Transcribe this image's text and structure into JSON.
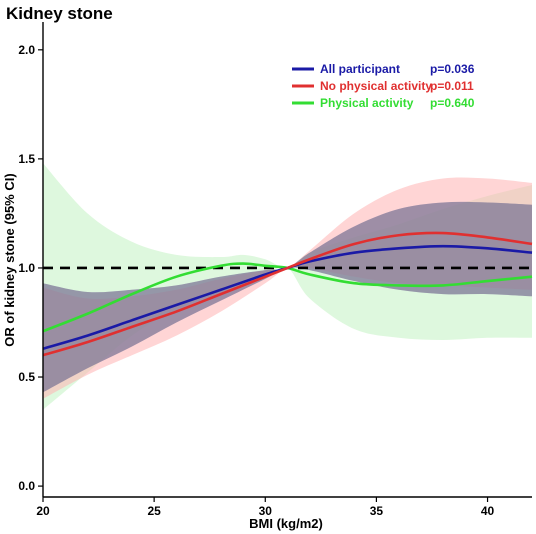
{
  "chart_data": {
    "type": "line",
    "title": "Kidney stone",
    "xlabel": "BMI (kg/m2)",
    "ylabel": "OR of kidney stone (95% CI)",
    "xlim": [
      20,
      42
    ],
    "ylim": [
      -0.05,
      2.1
    ],
    "xticks": [
      20,
      25,
      30,
      35,
      40
    ],
    "yticks": [
      "0.0",
      "0.5",
      "1.0",
      "1.5",
      "2.0"
    ],
    "reference_line": 1.0,
    "legend_position": "top-right",
    "series": [
      {
        "name": "All participant",
        "p_value": "p=0.036",
        "color": "#1a1aa6",
        "band_color": "#9a8ad8",
        "x": [
          20,
          22,
          24,
          26,
          28,
          30,
          31,
          32,
          34,
          36,
          38,
          40,
          42
        ],
        "y": [
          0.63,
          0.69,
          0.76,
          0.83,
          0.9,
          0.97,
          1.0,
          1.03,
          1.07,
          1.09,
          1.1,
          1.09,
          1.07
        ],
        "lower": [
          0.43,
          0.54,
          0.64,
          0.75,
          0.85,
          0.95,
          1.0,
          0.99,
          0.94,
          0.9,
          0.88,
          0.88,
          0.87
        ],
        "upper": [
          0.93,
          0.89,
          0.9,
          0.92,
          0.96,
          0.99,
          1.0,
          1.07,
          1.19,
          1.27,
          1.3,
          1.3,
          1.29
        ]
      },
      {
        "name": "No physical activity",
        "p_value": "p=0.011",
        "color": "#e03030",
        "band_color": "#ffb3b3",
        "x": [
          20,
          22,
          24,
          26,
          28,
          30,
          31,
          32,
          34,
          36,
          38,
          40,
          42
        ],
        "y": [
          0.6,
          0.66,
          0.73,
          0.8,
          0.88,
          0.96,
          1.0,
          1.04,
          1.11,
          1.15,
          1.16,
          1.14,
          1.11
        ],
        "lower": [
          0.4,
          0.51,
          0.6,
          0.69,
          0.8,
          0.93,
          1.0,
          1.0,
          0.96,
          0.93,
          0.92,
          0.91,
          0.9
        ],
        "upper": [
          0.91,
          0.86,
          0.87,
          0.9,
          0.95,
          0.99,
          1.0,
          1.08,
          1.25,
          1.36,
          1.41,
          1.41,
          1.39
        ]
      },
      {
        "name": "Physical activity",
        "p_value": "p=0.640",
        "color": "#33dd33",
        "band_color": "#c2f2c2",
        "x": [
          20,
          22,
          24,
          26,
          28,
          29,
          30,
          31,
          32,
          34,
          36,
          38,
          40,
          42
        ],
        "y": [
          0.71,
          0.79,
          0.88,
          0.96,
          1.01,
          1.02,
          1.01,
          1.0,
          0.97,
          0.93,
          0.92,
          0.92,
          0.94,
          0.96
        ],
        "lower": [
          0.35,
          0.52,
          0.69,
          0.81,
          0.89,
          0.92,
          0.97,
          1.0,
          0.86,
          0.72,
          0.68,
          0.67,
          0.68,
          0.68
        ],
        "upper": [
          1.48,
          1.25,
          1.12,
          1.06,
          1.05,
          1.06,
          1.04,
          1.0,
          1.07,
          1.14,
          1.2,
          1.27,
          1.33,
          1.38
        ]
      }
    ]
  }
}
